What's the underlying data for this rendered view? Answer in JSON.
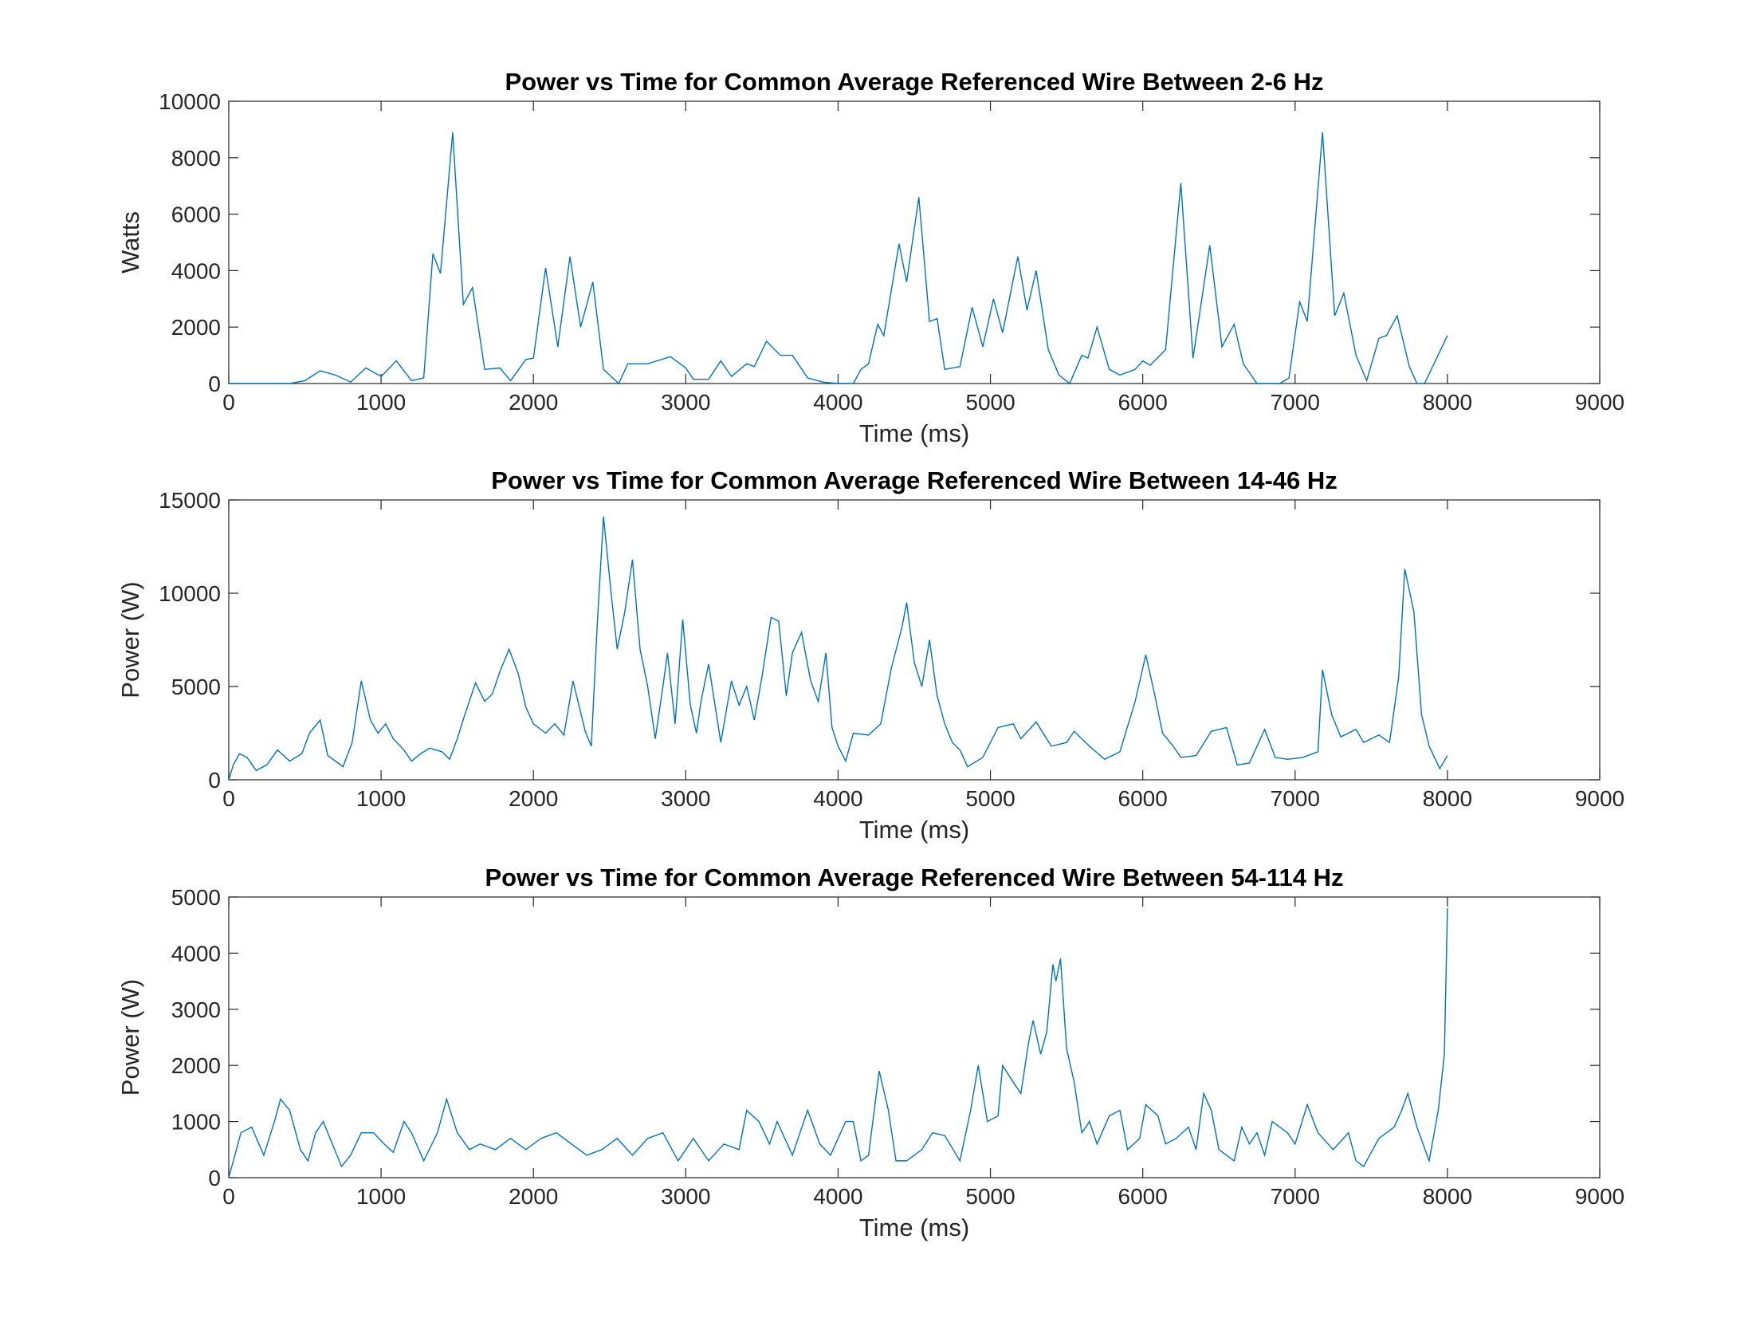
{
  "chart_data": [
    {
      "type": "line",
      "title": "Power vs Time for Common Average Referenced Wire Between 2-6 Hz",
      "xlabel": "Time (ms)",
      "ylabel": "Watts",
      "color": "#0072bd",
      "xlim": [
        0,
        9000
      ],
      "xticks": [
        0,
        1000,
        2000,
        3000,
        4000,
        5000,
        6000,
        7000,
        8000,
        9000
      ],
      "ylim": [
        0,
        10000
      ],
      "yticks": [
        0,
        2000,
        4000,
        6000,
        8000,
        10000
      ],
      "x": [
        0,
        400,
        500,
        600,
        700,
        800,
        900,
        1000,
        1100,
        1200,
        1280,
        1340,
        1390,
        1470,
        1540,
        1600,
        1680,
        1780,
        1850,
        1950,
        2000,
        2080,
        2160,
        2240,
        2310,
        2390,
        2460,
        2560,
        2620,
        2750,
        2900,
        3000,
        3050,
        3150,
        3230,
        3300,
        3400,
        3450,
        3530,
        3620,
        3700,
        3800,
        3900,
        4000,
        4100,
        4150,
        4200,
        4260,
        4300,
        4400,
        4450,
        4530,
        4600,
        4650,
        4700,
        4800,
        4880,
        4950,
        5020,
        5080,
        5180,
        5240,
        5300,
        5380,
        5450,
        5520,
        5600,
        5640,
        5700,
        5780,
        5850,
        5950,
        6000,
        6050,
        6150,
        6250,
        6330,
        6440,
        6520,
        6600,
        6660,
        6750,
        6900,
        6960,
        7030,
        7080,
        7180,
        7260,
        7320,
        7400,
        7470,
        7550,
        7600,
        7670,
        7750,
        7800,
        7850,
        8000
      ],
      "values": [
        0,
        0,
        100,
        450,
        300,
        50,
        550,
        250,
        800,
        100,
        200,
        4600,
        3900,
        8900,
        2800,
        3400,
        500,
        550,
        100,
        850,
        900,
        4100,
        1300,
        4500,
        2000,
        3600,
        500,
        0,
        700,
        700,
        950,
        550,
        150,
        150,
        800,
        250,
        700,
        600,
        1500,
        1000,
        1000,
        200,
        50,
        0,
        0,
        500,
        700,
        2100,
        1700,
        4950,
        3600,
        6600,
        2200,
        2300,
        500,
        600,
        2700,
        1300,
        3000,
        1800,
        4500,
        2600,
        4000,
        1200,
        300,
        0,
        1000,
        900,
        2000,
        500,
        300,
        500,
        800,
        650,
        1200,
        7100,
        900,
        4900,
        1300,
        2100,
        700,
        0,
        0,
        200,
        2900,
        2200,
        8900,
        2400,
        3200,
        1000,
        100,
        1600,
        1700,
        2400,
        600,
        0,
        0,
        1700
      ]
    },
    {
      "type": "line",
      "title": "Power vs Time for Common Average Referenced Wire Between 14-46 Hz",
      "xlabel": "Time (ms)",
      "ylabel": "Power (W)",
      "color": "#0072bd",
      "xlim": [
        0,
        9000
      ],
      "xticks": [
        0,
        1000,
        2000,
        3000,
        4000,
        5000,
        6000,
        7000,
        8000,
        9000
      ],
      "ylim": [
        0,
        15000
      ],
      "yticks": [
        0,
        5000,
        10000,
        15000
      ],
      "x": [
        0,
        30,
        70,
        120,
        180,
        250,
        320,
        400,
        480,
        530,
        600,
        650,
        750,
        810,
        870,
        930,
        980,
        1030,
        1080,
        1150,
        1200,
        1260,
        1320,
        1400,
        1450,
        1500,
        1550,
        1620,
        1680,
        1730,
        1780,
        1840,
        1900,
        1950,
        2000,
        2080,
        2140,
        2200,
        2260,
        2340,
        2380,
        2420,
        2460,
        2510,
        2550,
        2600,
        2650,
        2700,
        2750,
        2800,
        2850,
        2880,
        2930,
        2980,
        3030,
        3070,
        3100,
        3150,
        3230,
        3300,
        3350,
        3400,
        3450,
        3500,
        3560,
        3610,
        3660,
        3700,
        3760,
        3820,
        3870,
        3920,
        3960,
        4000,
        4050,
        4100,
        4200,
        4280,
        4350,
        4420,
        4450,
        4500,
        4550,
        4600,
        4650,
        4700,
        4750,
        4800,
        4850,
        4950,
        5050,
        5150,
        5200,
        5300,
        5400,
        5500,
        5550,
        5650,
        5750,
        5850,
        5950,
        6020,
        6080,
        6130,
        6200,
        6250,
        6350,
        6450,
        6550,
        6620,
        6700,
        6800,
        6870,
        6950,
        7050,
        7150,
        7180,
        7240,
        7300,
        7400,
        7450,
        7550,
        7620,
        7680,
        7720,
        7780,
        7830,
        7880,
        7950,
        8000
      ],
      "values": [
        0,
        800,
        1400,
        1200,
        500,
        800,
        1600,
        1000,
        1400,
        2500,
        3200,
        1300,
        700,
        2000,
        5300,
        3200,
        2500,
        3000,
        2200,
        1600,
        1000,
        1400,
        1700,
        1500,
        1100,
        2200,
        3500,
        5200,
        4200,
        4600,
        5800,
        7000,
        5700,
        3900,
        3000,
        2500,
        3000,
        2400,
        5300,
        2600,
        1800,
        8500,
        14100,
        10000,
        7000,
        9000,
        11800,
        7000,
        5000,
        2200,
        5000,
        6800,
        3000,
        8600,
        4000,
        2500,
        4200,
        6200,
        2000,
        5300,
        4000,
        5000,
        3200,
        5500,
        8700,
        8500,
        4500,
        6800,
        7900,
        5300,
        4200,
        6800,
        2800,
        1800,
        1000,
        2500,
        2400,
        3000,
        6000,
        8200,
        9500,
        6300,
        5000,
        7500,
        4500,
        3000,
        2000,
        1600,
        700,
        1200,
        2800,
        3000,
        2200,
        3100,
        1800,
        2000,
        2600,
        1800,
        1100,
        1500,
        4200,
        6700,
        4500,
        2500,
        1800,
        1200,
        1300,
        2600,
        2800,
        800,
        900,
        2700,
        1200,
        1100,
        1200,
        1500,
        5900,
        3500,
        2300,
        2700,
        2000,
        2400,
        2000,
        5500,
        11300,
        9000,
        3500,
        1800,
        600,
        1300
      ]
    },
    {
      "type": "line",
      "title": "Power vs Time for Common Average Referenced Wire Between 54-114 Hz",
      "xlabel": "Time (ms)",
      "ylabel": "Power (W)",
      "color": "#0072bd",
      "xlim": [
        0,
        9000
      ],
      "xticks": [
        0,
        1000,
        2000,
        3000,
        4000,
        5000,
        6000,
        7000,
        8000,
        9000
      ],
      "ylim": [
        0,
        5000
      ],
      "yticks": [
        0,
        1000,
        2000,
        3000,
        4000,
        5000
      ],
      "x": [
        0,
        80,
        150,
        230,
        300,
        340,
        400,
        470,
        520,
        570,
        620,
        680,
        740,
        800,
        870,
        950,
        1020,
        1080,
        1150,
        1200,
        1280,
        1370,
        1430,
        1500,
        1580,
        1650,
        1750,
        1850,
        1950,
        2050,
        2150,
        2250,
        2350,
        2450,
        2550,
        2650,
        2750,
        2850,
        2950,
        3050,
        3150,
        3250,
        3350,
        3400,
        3480,
        3550,
        3600,
        3700,
        3800,
        3880,
        3950,
        4050,
        4100,
        4150,
        4200,
        4270,
        4330,
        4380,
        4450,
        4550,
        4620,
        4700,
        4800,
        4870,
        4920,
        4980,
        5050,
        5080,
        5150,
        5200,
        5250,
        5280,
        5330,
        5370,
        5410,
        5430,
        5460,
        5500,
        5550,
        5600,
        5650,
        5700,
        5780,
        5850,
        5900,
        5980,
        6020,
        6100,
        6150,
        6220,
        6300,
        6350,
        6400,
        6450,
        6500,
        6600,
        6650,
        6700,
        6750,
        6800,
        6850,
        6950,
        7000,
        7080,
        7150,
        7250,
        7350,
        7400,
        7450,
        7550,
        7650,
        7700,
        7740,
        7800,
        7880,
        7940,
        7980,
        8000
      ],
      "values": [
        0,
        800,
        900,
        400,
        1000,
        1400,
        1200,
        500,
        300,
        800,
        1000,
        600,
        200,
        400,
        800,
        800,
        600,
        450,
        1000,
        800,
        300,
        800,
        1400,
        800,
        500,
        600,
        500,
        700,
        500,
        700,
        800,
        600,
        400,
        500,
        700,
        400,
        700,
        800,
        300,
        700,
        300,
        600,
        500,
        1200,
        1000,
        600,
        1000,
        400,
        1200,
        600,
        400,
        1000,
        1000,
        300,
        400,
        1900,
        1200,
        300,
        300,
        500,
        800,
        750,
        300,
        1200,
        2000,
        1000,
        1100,
        2000,
        1700,
        1500,
        2400,
        2800,
        2200,
        2600,
        3800,
        3500,
        3900,
        2300,
        1700,
        800,
        1000,
        600,
        1100,
        1200,
        500,
        700,
        1300,
        1100,
        600,
        700,
        900,
        500,
        1500,
        1200,
        500,
        300,
        900,
        600,
        800,
        400,
        1000,
        800,
        600,
        1300,
        800,
        500,
        800,
        300,
        200,
        700,
        900,
        1200,
        1500,
        900,
        300,
        1200,
        2200,
        4800
      ]
    }
  ]
}
